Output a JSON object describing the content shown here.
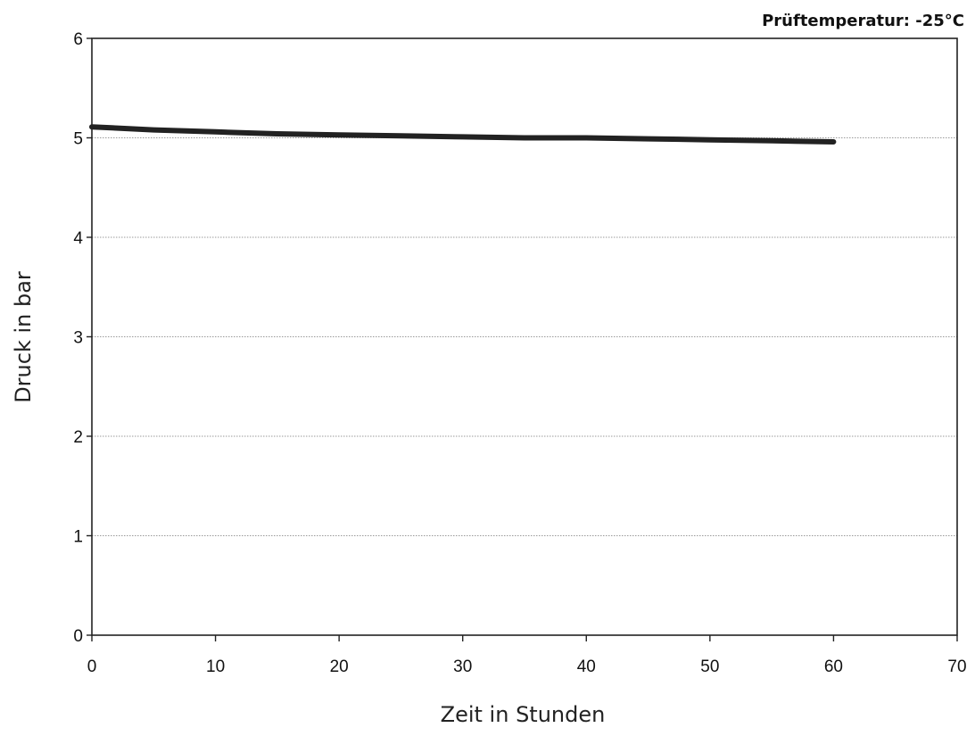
{
  "chart_data": {
    "type": "line",
    "title": "Prüftemperatur: -25°C",
    "xlabel": "Zeit in Stunden",
    "ylabel": "Druck in bar",
    "xlim": [
      0,
      70
    ],
    "ylim": [
      0,
      6
    ],
    "xticks": [
      "0",
      "10",
      "20",
      "30",
      "40",
      "50",
      "60",
      "70"
    ],
    "yticks": [
      "0",
      "1",
      "2",
      "3",
      "4",
      "5",
      "6"
    ],
    "grid": "horizontal",
    "legend": "none",
    "line_color": "#222222",
    "grid_color": "#9a9a9a",
    "series": [
      {
        "x": [
          0,
          5,
          10,
          15,
          20,
          25,
          30,
          35,
          40,
          45,
          50,
          55,
          60
        ],
        "y": [
          5.11,
          5.08,
          5.06,
          5.04,
          5.03,
          5.02,
          5.01,
          5.0,
          5.0,
          4.99,
          4.98,
          4.97,
          4.96
        ]
      }
    ]
  }
}
